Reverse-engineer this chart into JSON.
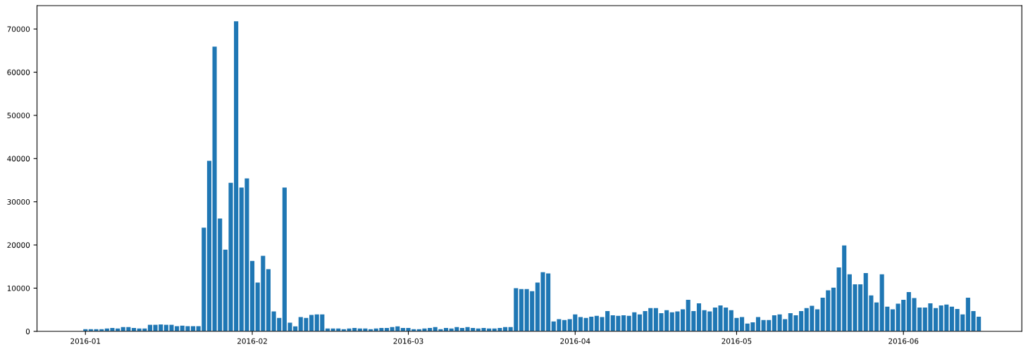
{
  "chart_data": {
    "type": "bar",
    "color": "#1f77b4",
    "x": [
      "2016-01-01",
      "2016-01-02",
      "2016-01-03",
      "2016-01-04",
      "2016-01-05",
      "2016-01-06",
      "2016-01-07",
      "2016-01-08",
      "2016-01-09",
      "2016-01-10",
      "2016-01-11",
      "2016-01-12",
      "2016-01-13",
      "2016-01-14",
      "2016-01-15",
      "2016-01-16",
      "2016-01-17",
      "2016-01-18",
      "2016-01-19",
      "2016-01-20",
      "2016-01-21",
      "2016-01-22",
      "2016-01-23",
      "2016-01-24",
      "2016-01-25",
      "2016-01-26",
      "2016-01-27",
      "2016-01-28",
      "2016-01-29",
      "2016-01-30",
      "2016-01-31",
      "2016-02-01",
      "2016-02-02",
      "2016-02-03",
      "2016-02-04",
      "2016-02-05",
      "2016-02-06",
      "2016-02-07",
      "2016-02-08",
      "2016-02-09",
      "2016-02-10",
      "2016-02-11",
      "2016-02-12",
      "2016-02-13",
      "2016-02-14",
      "2016-02-15",
      "2016-02-16",
      "2016-02-17",
      "2016-02-18",
      "2016-02-19",
      "2016-02-20",
      "2016-02-21",
      "2016-02-22",
      "2016-02-23",
      "2016-02-24",
      "2016-02-25",
      "2016-02-26",
      "2016-02-27",
      "2016-02-28",
      "2016-02-29",
      "2016-03-01",
      "2016-03-02",
      "2016-03-03",
      "2016-03-04",
      "2016-03-05",
      "2016-03-06",
      "2016-03-07",
      "2016-03-08",
      "2016-03-09",
      "2016-03-10",
      "2016-03-11",
      "2016-03-12",
      "2016-03-13",
      "2016-03-14",
      "2016-03-15",
      "2016-03-16",
      "2016-03-17",
      "2016-03-18",
      "2016-03-19",
      "2016-03-20",
      "2016-03-21",
      "2016-03-22",
      "2016-03-23",
      "2016-03-24",
      "2016-03-25",
      "2016-03-26",
      "2016-03-27",
      "2016-03-28",
      "2016-03-29",
      "2016-03-30",
      "2016-03-31",
      "2016-04-01",
      "2016-04-02",
      "2016-04-03",
      "2016-04-04",
      "2016-04-05",
      "2016-04-06",
      "2016-04-07",
      "2016-04-08",
      "2016-04-09",
      "2016-04-10",
      "2016-04-11",
      "2016-04-12",
      "2016-04-13",
      "2016-04-14",
      "2016-04-15",
      "2016-04-16",
      "2016-04-17",
      "2016-04-18",
      "2016-04-19",
      "2016-04-20",
      "2016-04-21",
      "2016-04-22",
      "2016-04-23",
      "2016-04-24",
      "2016-04-25",
      "2016-04-26",
      "2016-04-27",
      "2016-04-28",
      "2016-04-29",
      "2016-04-30",
      "2016-05-01",
      "2016-05-02",
      "2016-05-03",
      "2016-05-04",
      "2016-05-05",
      "2016-05-06",
      "2016-05-07",
      "2016-05-08",
      "2016-05-09",
      "2016-05-10",
      "2016-05-11",
      "2016-05-12",
      "2016-05-13",
      "2016-05-14",
      "2016-05-15",
      "2016-05-16",
      "2016-05-17",
      "2016-05-18",
      "2016-05-19",
      "2016-05-20",
      "2016-05-21",
      "2016-05-22",
      "2016-05-23",
      "2016-05-24",
      "2016-05-25",
      "2016-05-26",
      "2016-05-27",
      "2016-05-28",
      "2016-05-29",
      "2016-05-30",
      "2016-05-31",
      "2016-06-01",
      "2016-06-02",
      "2016-06-03",
      "2016-06-04",
      "2016-06-05",
      "2016-06-06",
      "2016-06-07",
      "2016-06-08",
      "2016-06-09",
      "2016-06-10",
      "2016-06-11",
      "2016-06-12",
      "2016-06-13",
      "2016-06-14",
      "2016-06-15"
    ],
    "values": [
      500,
      500,
      500,
      500,
      650,
      800,
      650,
      1000,
      1000,
      800,
      650,
      650,
      1500,
      1500,
      1600,
      1500,
      1500,
      1200,
      1300,
      1200,
      1200,
      1200,
      24000,
      39500,
      65900,
      26100,
      18900,
      34400,
      71800,
      33300,
      35400,
      16300,
      11300,
      17500,
      14400,
      4600,
      3100,
      33300,
      2000,
      1150,
      3300,
      3100,
      3800,
      3900,
      3900,
      650,
      650,
      650,
      500,
      650,
      800,
      650,
      650,
      500,
      650,
      800,
      800,
      1000,
      1150,
      800,
      800,
      500,
      500,
      650,
      800,
      1000,
      500,
      800,
      650,
      1000,
      800,
      1000,
      800,
      650,
      800,
      650,
      650,
      800,
      1000,
      1000,
      10000,
      9800,
      9800,
      9300,
      11300,
      13700,
      13400,
      2300,
      2800,
      2600,
      2800,
      3900,
      3300,
      3100,
      3400,
      3600,
      3300,
      4700,
      3700,
      3600,
      3700,
      3600,
      4400,
      3900,
      4700,
      5400,
      5400,
      4200,
      4900,
      4400,
      4600,
      5100,
      7300,
      4700,
      6500,
      4900,
      4600,
      5500,
      6000,
      5500,
      4900,
      3100,
      3300,
      1800,
      2100,
      3300,
      2600,
      2600,
      3700,
      3900,
      2800,
      4200,
      3700,
      4700,
      5400,
      5900,
      5100,
      7800,
      9500,
      10100,
      14800,
      19900,
      13200,
      10900,
      10900,
      13500,
      8300,
      6700,
      13200,
      5700,
      5100,
      6400,
      7300,
      9100,
      7700,
      5500,
      5500,
      6500,
      5400,
      6000,
      6200,
      5700,
      5200,
      3900,
      7800,
      4700,
      3400
    ],
    "xlim": [
      "2015-12-23",
      "2016-06-23"
    ],
    "xticks": [
      {
        "value": "2016-01-01",
        "label": "2016-01"
      },
      {
        "value": "2016-02-01",
        "label": "2016-02"
      },
      {
        "value": "2016-03-01",
        "label": "2016-03"
      },
      {
        "value": "2016-04-01",
        "label": "2016-04"
      },
      {
        "value": "2016-05-01",
        "label": "2016-05"
      },
      {
        "value": "2016-06-01",
        "label": "2016-06"
      }
    ],
    "ylim": [
      0,
      75400
    ],
    "yticks": [
      0,
      10000,
      20000,
      30000,
      40000,
      50000,
      60000,
      70000
    ],
    "grid": false
  }
}
